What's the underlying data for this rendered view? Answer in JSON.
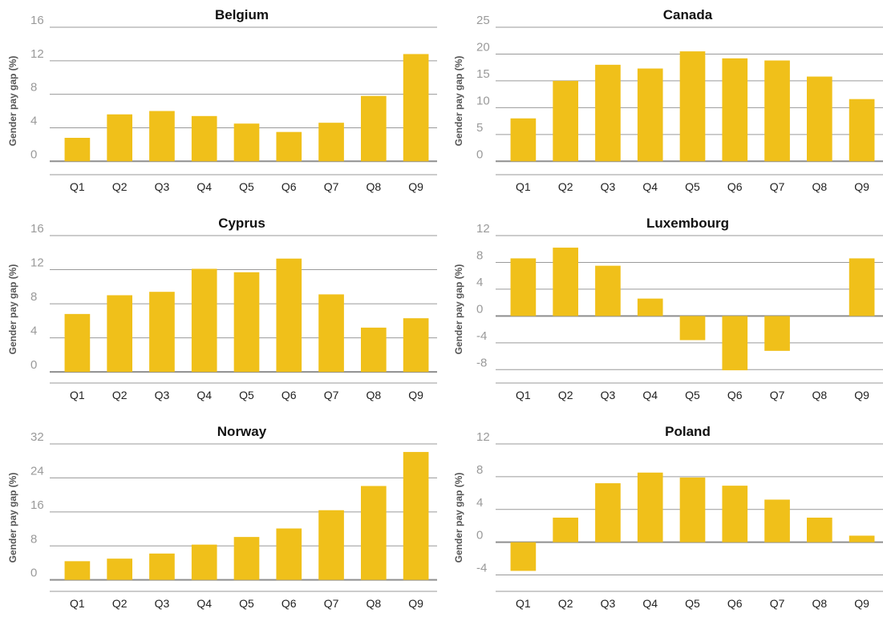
{
  "colors": {
    "bar": "#F0C01A",
    "grid": "#9a9a9a",
    "zero_line": "#8f8f8f"
  },
  "chart_data": [
    {
      "type": "bar",
      "title": "Belgium",
      "ylabel": "Gender pay gap (%)",
      "categories": [
        "Q1",
        "Q2",
        "Q3",
        "Q4",
        "Q5",
        "Q6",
        "Q7",
        "Q8",
        "Q9"
      ],
      "values": [
        2.8,
        5.6,
        6.0,
        5.4,
        4.5,
        3.5,
        4.6,
        7.8,
        12.8
      ],
      "ylim": [
        -1.6,
        16
      ],
      "yticks": [
        0,
        4,
        8,
        12,
        16
      ],
      "grid": true
    },
    {
      "type": "bar",
      "title": "Canada",
      "ylabel": "Gender pay gap (%)",
      "categories": [
        "Q1",
        "Q2",
        "Q3",
        "Q4",
        "Q5",
        "Q6",
        "Q7",
        "Q8",
        "Q9"
      ],
      "values": [
        8.0,
        15.0,
        18.0,
        17.3,
        20.5,
        19.2,
        18.8,
        15.8,
        11.6
      ],
      "ylim": [
        -2.5,
        25
      ],
      "yticks": [
        0,
        5,
        10,
        15,
        20,
        25
      ],
      "grid": true
    },
    {
      "type": "bar",
      "title": "Cyprus",
      "ylabel": "Gender pay gap (%)",
      "categories": [
        "Q1",
        "Q2",
        "Q3",
        "Q4",
        "Q5",
        "Q6",
        "Q7",
        "Q8",
        "Q9"
      ],
      "values": [
        6.8,
        9.0,
        9.4,
        12.1,
        11.7,
        13.3,
        9.1,
        5.2,
        6.3
      ],
      "ylim": [
        -1.3,
        16
      ],
      "yticks": [
        0,
        4,
        8,
        12,
        16
      ],
      "grid": true
    },
    {
      "type": "bar",
      "title": "Luxembourg",
      "ylabel": "Gender pay gap (%)",
      "categories": [
        "Q1",
        "Q2",
        "Q3",
        "Q4",
        "Q5",
        "Q6",
        "Q7",
        "Q8",
        "Q9"
      ],
      "values": [
        8.6,
        10.2,
        7.5,
        2.6,
        -3.6,
        -8.1,
        -5.2,
        0,
        8.6
      ],
      "ylim": [
        -10,
        12
      ],
      "yticks": [
        -8,
        -4,
        0,
        4,
        8,
        12
      ],
      "grid": true
    },
    {
      "type": "bar",
      "title": "Norway",
      "ylabel": "Gender pay gap (%)",
      "categories": [
        "Q1",
        "Q2",
        "Q3",
        "Q4",
        "Q5",
        "Q6",
        "Q7",
        "Q8",
        "Q9"
      ],
      "values": [
        4.4,
        5.0,
        6.2,
        8.3,
        10.1,
        12.1,
        16.4,
        22.1,
        30.1
      ],
      "ylim": [
        -2.7,
        32
      ],
      "yticks": [
        0,
        8,
        16,
        24,
        32
      ],
      "grid": true
    },
    {
      "type": "bar",
      "title": "Poland",
      "ylabel": "Gender pay gap (%)",
      "categories": [
        "Q1",
        "Q2",
        "Q3",
        "Q4",
        "Q5",
        "Q6",
        "Q7",
        "Q8",
        "Q9"
      ],
      "values": [
        -3.5,
        3.0,
        7.2,
        8.5,
        7.9,
        6.9,
        5.2,
        3.0,
        0.8
      ],
      "ylim": [
        -6,
        12
      ],
      "yticks": [
        -4,
        0,
        4,
        8,
        12
      ],
      "grid": true
    }
  ]
}
